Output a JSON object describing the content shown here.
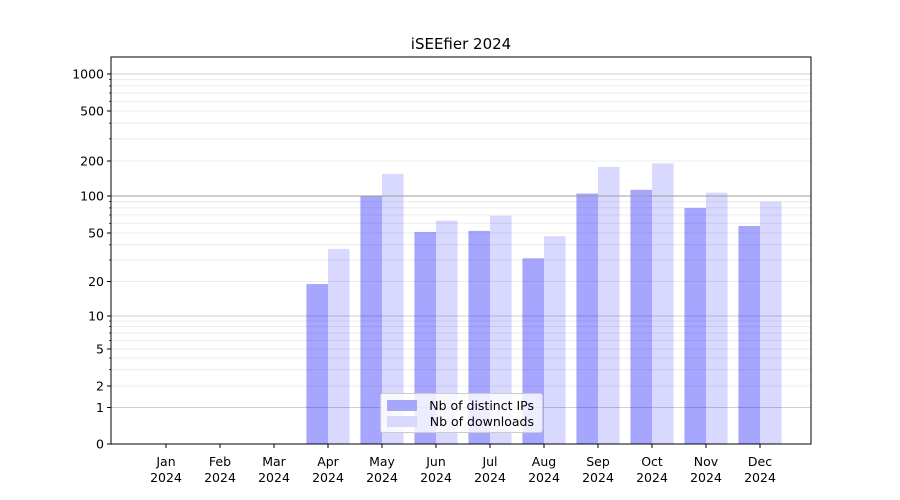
{
  "figure": {
    "title": "iSEEfier 2024"
  },
  "legend": {
    "items": [
      {
        "label": "Nb of distinct IPs",
        "series": "ips"
      },
      {
        "label": "Nb of downloads",
        "series": "downloads"
      }
    ]
  },
  "colors": {
    "ips_fill": "rgba(0,0,255,0.35)",
    "downloads_fill": "rgba(0,0,255,0.15)",
    "ips_legend": "#a6a6fa",
    "downloads_legend": "#d9d9fb",
    "grid_major": "#d0d0d0",
    "grid_minor": "#ececec",
    "hline_100": "#9b9b9b",
    "axis": "#000000",
    "text": "#000000"
  },
  "chart_data": {
    "type": "bar",
    "title": "iSEEfier 2024",
    "categories": [
      "Jan 2024",
      "Feb 2024",
      "Mar 2024",
      "Apr 2024",
      "May 2024",
      "Jun 2024",
      "Jul 2024",
      "Aug 2024",
      "Sep 2024",
      "Oct 2024",
      "Nov 2024",
      "Dec 2024"
    ],
    "series": [
      {
        "name": "Nb of distinct IPs",
        "values": [
          0,
          0,
          0,
          19,
          100,
          51,
          52,
          31,
          105,
          113,
          80,
          57
        ]
      },
      {
        "name": "Nb of downloads",
        "values": [
          0,
          0,
          0,
          37,
          155,
          63,
          69,
          47,
          178,
          191,
          107,
          90
        ]
      }
    ],
    "yscale": "symlog",
    "ytick_labels": [
      0,
      1,
      2,
      5,
      10,
      20,
      50,
      100,
      200,
      500,
      1000
    ],
    "ylim": [
      0,
      1400
    ],
    "grid": true,
    "legend_position": "lower center inside"
  }
}
